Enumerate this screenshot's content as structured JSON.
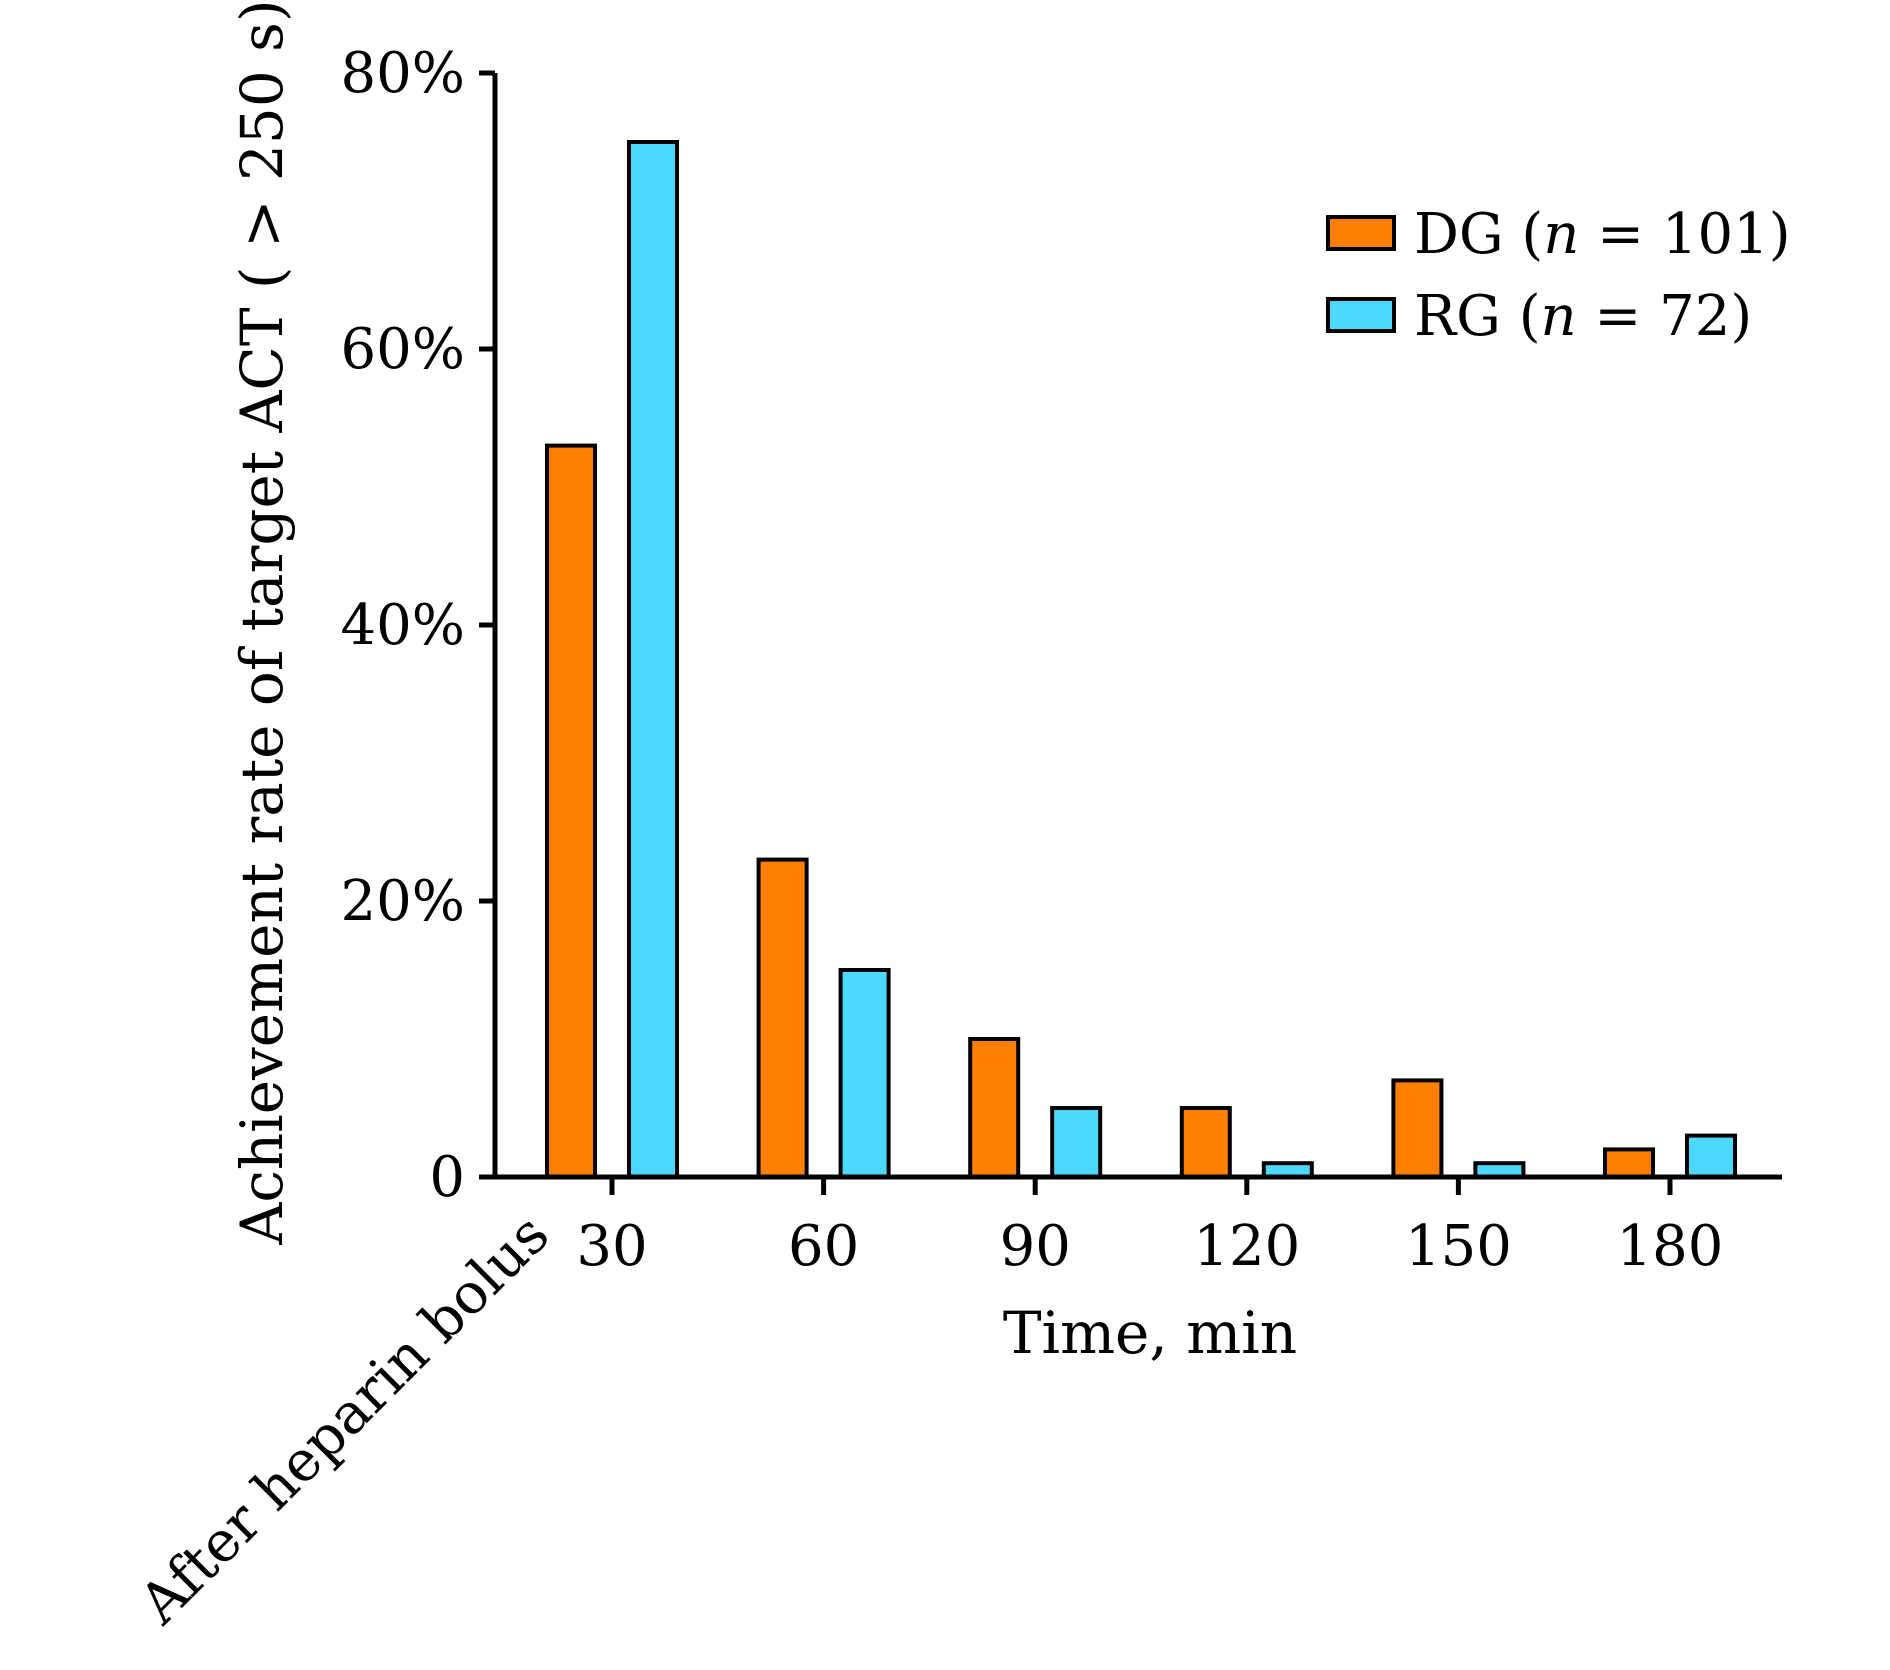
{
  "chart_data": {
    "type": "bar",
    "title": "",
    "xlabel": "Time, min",
    "ylabel": "Achievement rate of target ACT ( > 250 s)",
    "annotation": "After heparin bolus",
    "categories": [
      "30",
      "60",
      "90",
      "120",
      "150",
      "180"
    ],
    "y_ticks": [
      0,
      20,
      40,
      60,
      80
    ],
    "y_tick_labels": [
      "0",
      "20%",
      "40%",
      "60%",
      "80%"
    ],
    "ylim": [
      0,
      80
    ],
    "grid": false,
    "legend_position": "top-right",
    "series": [
      {
        "legend_prefix": "DG (",
        "legend_italic": "n",
        "legend_suffix": " = 101)",
        "color": "#FF8000",
        "values": [
          53,
          23,
          10,
          5,
          7,
          2
        ]
      },
      {
        "legend_prefix": "RG (",
        "legend_italic": "n",
        "legend_suffix": " = 72)",
        "color": "#4DD8FF",
        "values": [
          75,
          15,
          5,
          1,
          1,
          3
        ]
      }
    ]
  }
}
